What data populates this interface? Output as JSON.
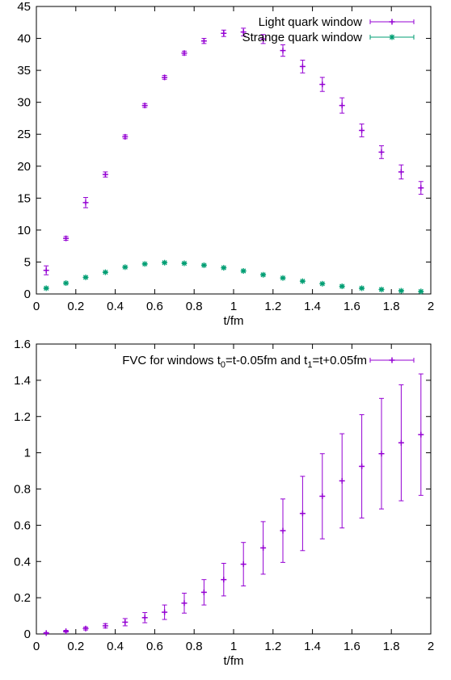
{
  "chart_data": [
    {
      "type": "scatter",
      "title": "",
      "xlabel": "t/fm",
      "ylabel": "",
      "xlim": [
        0,
        2
      ],
      "ylim": [
        0,
        45
      ],
      "xticks": [
        "0",
        "0.2",
        "0.4",
        "0.6",
        "0.8",
        "1",
        "1.2",
        "1.4",
        "1.6",
        "1.8",
        "2"
      ],
      "yticks": [
        "0",
        "5",
        "10",
        "15",
        "20",
        "25",
        "30",
        "35",
        "40",
        "45"
      ],
      "grid": false,
      "legend_position": "top-right",
      "series": [
        {
          "name": "Light quark window",
          "color": "#9400d3",
          "marker": "plus",
          "x": [
            0.05,
            0.15,
            0.25,
            0.35,
            0.45,
            0.55,
            0.65,
            0.75,
            0.85,
            0.95,
            1.05,
            1.15,
            1.25,
            1.35,
            1.45,
            1.55,
            1.65,
            1.75,
            1.85,
            1.95
          ],
          "y": [
            3.7,
            8.7,
            14.3,
            18.7,
            24.6,
            29.5,
            33.9,
            37.7,
            39.6,
            40.8,
            41.0,
            39.9,
            38.1,
            35.6,
            32.8,
            29.5,
            25.6,
            22.2,
            19.1,
            16.6
          ],
          "yerr": [
            0.7,
            0.3,
            0.8,
            0.4,
            0.3,
            0.3,
            0.3,
            0.3,
            0.4,
            0.5,
            0.6,
            0.7,
            0.9,
            1.0,
            1.1,
            1.2,
            1.0,
            1.0,
            1.1,
            1.0
          ]
        },
        {
          "name": "Strange quark window",
          "color": "#009e73",
          "marker": "x",
          "x": [
            0.05,
            0.15,
            0.25,
            0.35,
            0.45,
            0.55,
            0.65,
            0.75,
            0.85,
            0.95,
            1.05,
            1.15,
            1.25,
            1.35,
            1.45,
            1.55,
            1.65,
            1.75,
            1.85,
            1.95
          ],
          "y": [
            0.9,
            1.7,
            2.6,
            3.4,
            4.2,
            4.7,
            4.9,
            4.8,
            4.5,
            4.1,
            3.6,
            3.0,
            2.5,
            2.0,
            1.6,
            1.2,
            0.9,
            0.7,
            0.5,
            0.4
          ],
          "yerr": [
            0.05,
            0.05,
            0.05,
            0.05,
            0.05,
            0.05,
            0.05,
            0.05,
            0.05,
            0.05,
            0.05,
            0.05,
            0.05,
            0.05,
            0.05,
            0.05,
            0.05,
            0.05,
            0.05,
            0.05
          ]
        }
      ]
    },
    {
      "type": "scatter",
      "title": "",
      "xlabel": "t/fm",
      "ylabel": "",
      "xlim": [
        0,
        2
      ],
      "ylim": [
        0,
        1.6
      ],
      "xticks": [
        "0",
        "0.2",
        "0.4",
        "0.6",
        "0.8",
        "1",
        "1.2",
        "1.4",
        "1.6",
        "1.8",
        "2"
      ],
      "yticks": [
        "0",
        "0.2",
        "0.4",
        "0.6",
        "0.8",
        "1",
        "1.2",
        "1.4",
        "1.6"
      ],
      "grid": false,
      "legend_position": "top-right",
      "series": [
        {
          "name": "FVC for windows t0=t-0.05fm and t1=t+0.05fm",
          "legend_parts": {
            "a": "FVC for windows t",
            "sub0": "0",
            "b": "=t-0.05fm and t",
            "sub1": "1",
            "c": "=t+0.05fm"
          },
          "color": "#9400d3",
          "marker": "plus",
          "x": [
            0.05,
            0.15,
            0.25,
            0.35,
            0.45,
            0.55,
            0.65,
            0.75,
            0.85,
            0.95,
            1.05,
            1.15,
            1.25,
            1.35,
            1.45,
            1.55,
            1.65,
            1.75,
            1.85,
            1.95
          ],
          "y": [
            0.005,
            0.015,
            0.03,
            0.045,
            0.065,
            0.09,
            0.12,
            0.17,
            0.23,
            0.3,
            0.385,
            0.475,
            0.57,
            0.665,
            0.76,
            0.845,
            0.925,
            0.995,
            1.055,
            1.1
          ],
          "yerr": [
            0.003,
            0.005,
            0.008,
            0.012,
            0.02,
            0.028,
            0.04,
            0.055,
            0.07,
            0.09,
            0.12,
            0.145,
            0.175,
            0.205,
            0.235,
            0.26,
            0.285,
            0.305,
            0.32,
            0.335
          ]
        }
      ]
    }
  ]
}
